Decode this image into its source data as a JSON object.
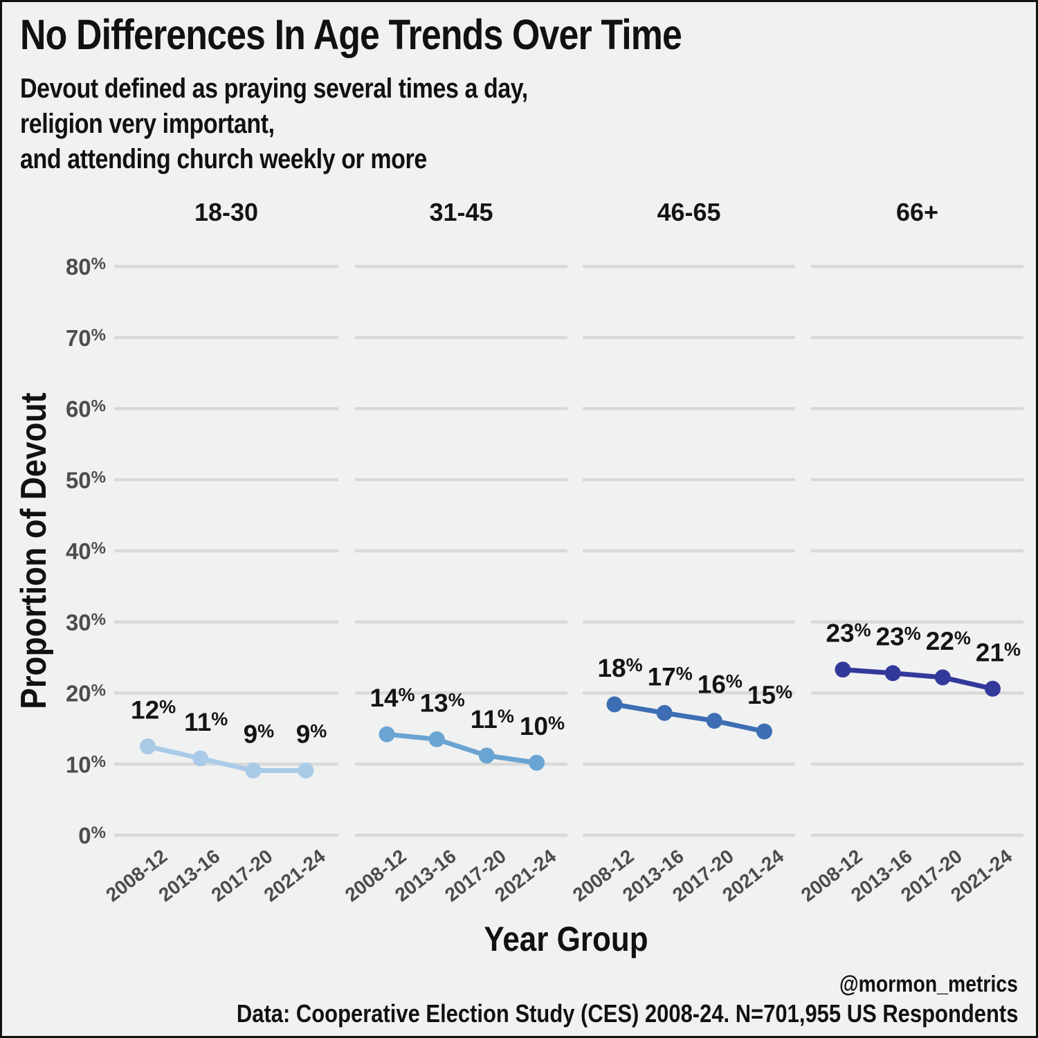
{
  "page": {
    "title": "No Differences In Age Trends Over Time",
    "subtitle_lines": [
      "Devout defined as praying several times a day,",
      "religion very important,",
      "and attending church weekly or more"
    ],
    "x_axis_title": "Year Group",
    "y_axis_title": "Proportion of Devout",
    "footer_handle": "@mormon_metrics",
    "footer_source": "Data: Cooperative Election Study (CES) 2008-24. N=701,955 US Respondents"
  },
  "chart_data": {
    "type": "line",
    "facets": [
      {
        "label": "18-30",
        "color": "#a9cbe8",
        "values": [
          12.5,
          10.8,
          9.1,
          9.1
        ],
        "point_labels": [
          "12%",
          "11%",
          "9%",
          "9%"
        ]
      },
      {
        "label": "31-45",
        "color": "#6aa4d2",
        "values": [
          14.2,
          13.5,
          11.2,
          10.2
        ],
        "point_labels": [
          "14%",
          "13%",
          "11%",
          "10%"
        ]
      },
      {
        "label": "46-65",
        "color": "#3d6eb4",
        "values": [
          18.4,
          17.2,
          16.1,
          14.6
        ],
        "point_labels": [
          "18%",
          "17%",
          "16%",
          "15%"
        ]
      },
      {
        "label": "66+",
        "color": "#33389b",
        "values": [
          23.3,
          22.8,
          22.2,
          20.6
        ],
        "point_labels": [
          "23%",
          "23%",
          "22%",
          "21%"
        ]
      }
    ],
    "categories": [
      "2008-12",
      "2013-16",
      "2017-20",
      "2021-24"
    ],
    "xlabel": "Year Group",
    "ylabel": "Proportion of Devout",
    "ylim": [
      0,
      80
    ],
    "y_tick_labels": [
      "0%",
      "10%",
      "20%",
      "30%",
      "40%",
      "50%",
      "60%",
      "70%",
      "80%"
    ],
    "grid": "horizontal-major-only",
    "legend": "none"
  },
  "colors": {
    "background": "#f0f1f1",
    "grid": "#d9d9d9",
    "tick_text": "#4c4c4c",
    "text": "#141414",
    "border": "#111111"
  }
}
